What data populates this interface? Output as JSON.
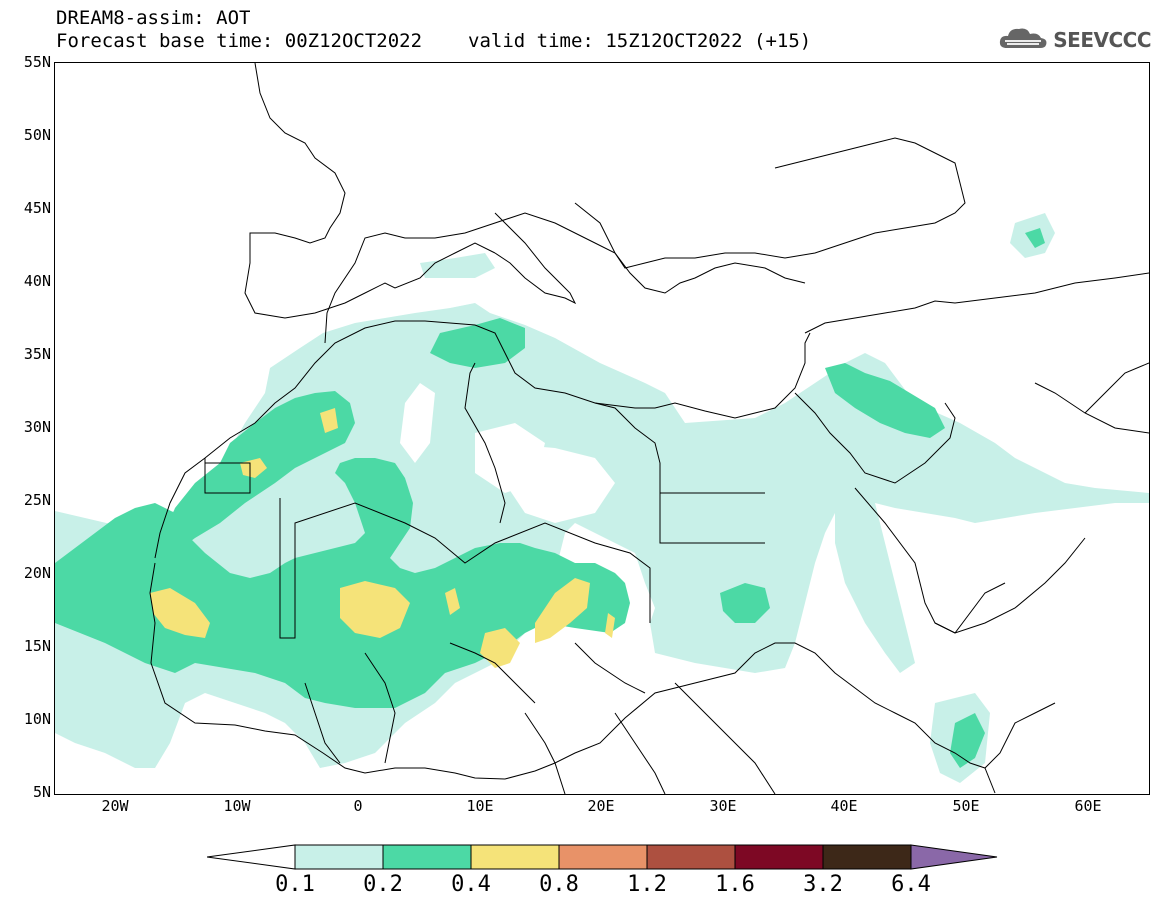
{
  "header": {
    "title": "DREAM8-assim: AOT",
    "base_time": "Forecast base time: 00Z12OCT2022",
    "valid_time": "valid time: 15Z12OCT2022 (+15)",
    "logo_text": "SEEVCCC",
    "logo_icon": "cloud-icon"
  },
  "map": {
    "lat_labels": [
      "55N",
      "50N",
      "45N",
      "40N",
      "35N",
      "30N",
      "25N",
      "20N",
      "15N",
      "10N",
      "5N"
    ],
    "lon_labels": [
      "20W",
      "10W",
      "0",
      "10E",
      "20E",
      "30E",
      "40E",
      "50E",
      "60E"
    ],
    "extent": {
      "lon_min": -25,
      "lon_max": 65,
      "lat_min": 5,
      "lat_max": 55
    }
  },
  "colorbar": {
    "colors": [
      "#c8f0e8",
      "#4cd9a5",
      "#f5e379",
      "#e89268",
      "#ad5040",
      "#7d0824",
      "#3d2818",
      "#8a68a8"
    ],
    "under_color": "#ffffff",
    "labels": [
      "0.1",
      "0.2",
      "0.4",
      "0.8",
      "1.2",
      "1.6",
      "3.2",
      "6.4"
    ]
  }
}
